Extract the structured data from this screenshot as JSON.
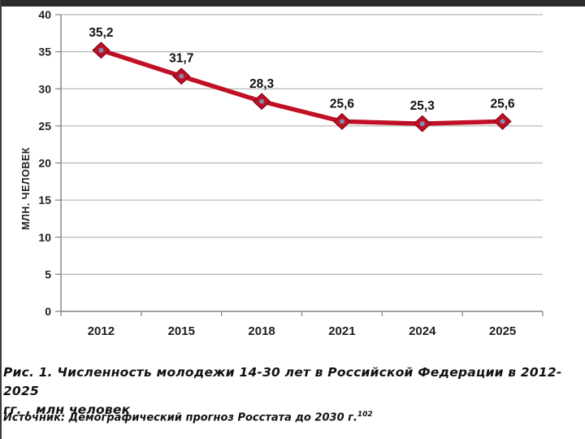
{
  "page": {
    "background": "#ffffff",
    "top_bar_color": "#2b2b2b"
  },
  "chart_data": {
    "type": "line",
    "title": "",
    "categories": [
      "2012",
      "2015",
      "2018",
      "2021",
      "2024",
      "2025"
    ],
    "series": [
      {
        "name": "Численность молодежи 14-30 лет, млн человек",
        "values": [
          35.2,
          31.7,
          28.3,
          25.6,
          25.3,
          25.6
        ]
      }
    ],
    "value_labels": [
      "35,2",
      "31,7",
      "28,3",
      "25,6",
      "25,3",
      "25,6"
    ],
    "xlabel": "",
    "ylabel": "МЛН. ЧЕЛОВЕК",
    "ylim": [
      0,
      40
    ],
    "ytick_step": 5,
    "yticks": [
      "0",
      "5",
      "10",
      "15",
      "20",
      "25",
      "30",
      "35",
      "40"
    ],
    "grid": true,
    "legend": "none",
    "colors": {
      "line": "#c01025",
      "marker_fill": "#c01025",
      "marker_stroke": "#8f0a1c",
      "marker_center": "#7b8fae",
      "gridline": "#b8b8b8",
      "axis": "#808080",
      "tick_label": "#1f1f1f",
      "value_label": "#121212"
    }
  },
  "caption": {
    "line1": "Рис. 1. Численность молодежи 14-30 лет в Российской Федерации в 2012-2025",
    "line2": "гг. , млн человек"
  },
  "source": {
    "text": "Источник: Демографический прогноз Росстата до 2030 г.",
    "superscript": "102"
  }
}
